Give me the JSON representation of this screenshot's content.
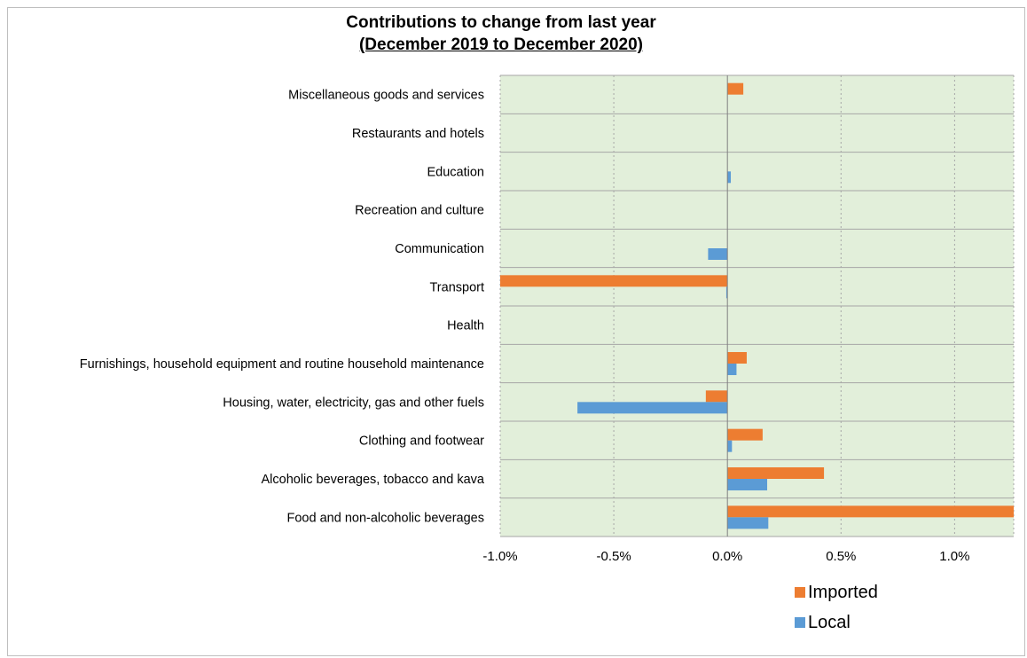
{
  "chart_data": {
    "type": "bar",
    "orientation": "horizontal",
    "title": "Contributions to change from last year",
    "subtitle": "(December 2019 to December 2020)",
    "categories": [
      "Miscellaneous goods and services",
      "Restaurants and hotels",
      "Education",
      "Recreation and culture",
      "Communication",
      "Transport",
      "Health",
      "Furnishings, household equipment and routine household maintenance",
      "Housing, water, electricity, gas and other fuels",
      "Clothing and footwear",
      "Alcoholic beverages, tobacco and kava",
      "Food and non-alcoholic beverages"
    ],
    "series": [
      {
        "name": "Imported",
        "color": "#ED7D31",
        "values": [
          0.07,
          0.0,
          0.0,
          0.0,
          0.0,
          -1.0,
          0.0,
          0.085,
          -0.095,
          0.155,
          0.425,
          1.26
        ]
      },
      {
        "name": "Local",
        "color": "#5B9BD5",
        "values": [
          0.0,
          0.0,
          0.015,
          0.0,
          -0.085,
          -0.005,
          0.0,
          0.04,
          -0.66,
          0.02,
          0.175,
          0.18
        ]
      }
    ],
    "x_ticks": [
      "-1.0%",
      "-0.5%",
      "0.0%",
      "0.5%",
      "1.0%"
    ],
    "x_tick_values": [
      -1.0,
      -0.5,
      0.0,
      0.5,
      1.0
    ],
    "xlim": [
      -1.0,
      1.26
    ],
    "units": "%",
    "grid": true,
    "plot_background": "#E2EFDA",
    "legend_position": "bottom-right"
  }
}
